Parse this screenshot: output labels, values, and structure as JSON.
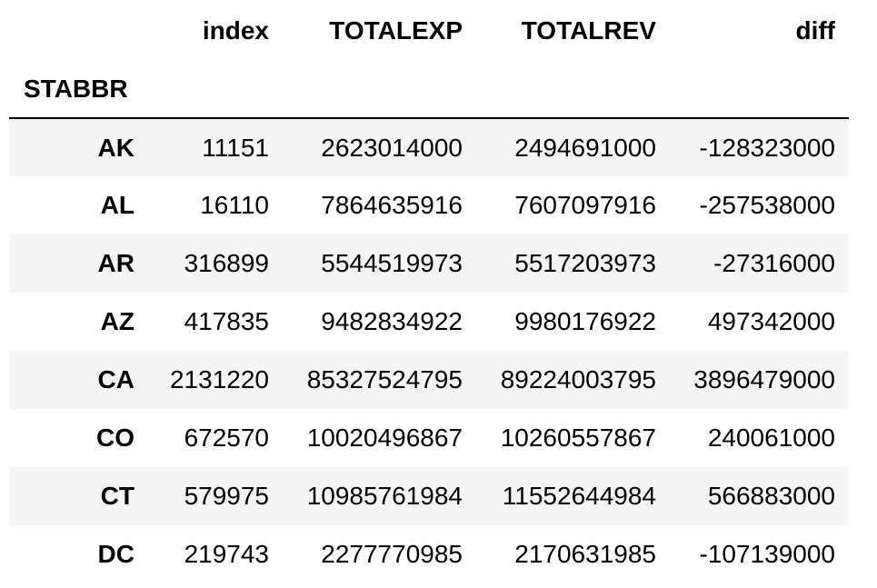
{
  "table": {
    "columns": [
      "index",
      "TOTALEXP",
      "TOTALREV",
      "diff"
    ],
    "index_name": "STABBR",
    "rows": [
      {
        "label": "AK",
        "cells": [
          "11151",
          "2623014000",
          "2494691000",
          "-128323000"
        ]
      },
      {
        "label": "AL",
        "cells": [
          "16110",
          "7864635916",
          "7607097916",
          "-257538000"
        ]
      },
      {
        "label": "AR",
        "cells": [
          "316899",
          "5544519973",
          "5517203973",
          "-27316000"
        ]
      },
      {
        "label": "AZ",
        "cells": [
          "417835",
          "9482834922",
          "9980176922",
          "497342000"
        ]
      },
      {
        "label": "CA",
        "cells": [
          "2131220",
          "85327524795",
          "89224003795",
          "3896479000"
        ]
      },
      {
        "label": "CO",
        "cells": [
          "672570",
          "10020496867",
          "10260557867",
          "240061000"
        ]
      },
      {
        "label": "CT",
        "cells": [
          "579975",
          "10985761984",
          "11552644984",
          "566883000"
        ]
      },
      {
        "label": "DC",
        "cells": [
          "219743",
          "2277770985",
          "2170631985",
          "-107139000"
        ]
      }
    ]
  }
}
